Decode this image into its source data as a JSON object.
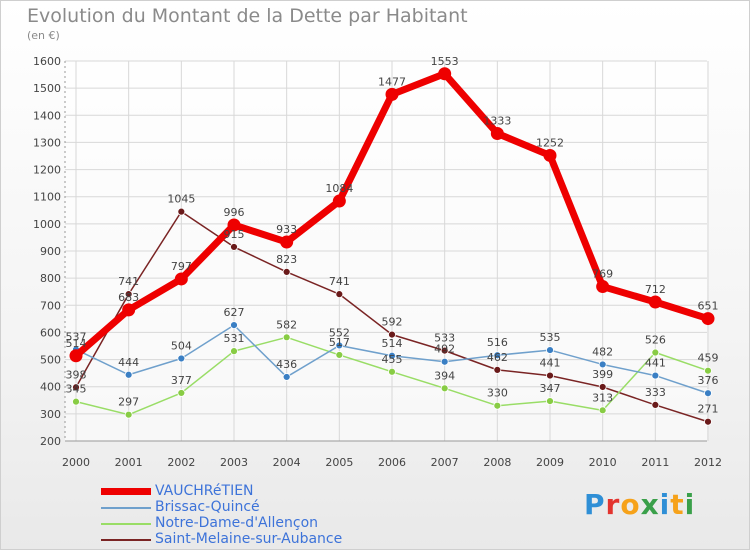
{
  "title": "Evolution du Montant de la Dette par Habitant",
  "subtitle": "(en €)",
  "brand": {
    "text": "Proxiti",
    "letters": [
      "P",
      "r",
      "o",
      "x",
      "i",
      "t",
      "i"
    ],
    "colors": [
      "#2f8fd6",
      "#e3342f",
      "#f6a21a",
      "#3aa04a",
      "#2f8fd6",
      "#f6a21a",
      "#3aa04a"
    ]
  },
  "chart_data": {
    "type": "line",
    "x": [
      "2000",
      "2001",
      "2002",
      "2003",
      "2004",
      "2005",
      "2006",
      "2007",
      "2008",
      "2009",
      "2010",
      "2011",
      "2012"
    ],
    "ylim": [
      200,
      1600
    ],
    "yticks": [
      200,
      300,
      400,
      500,
      600,
      700,
      800,
      900,
      1000,
      1100,
      1200,
      1300,
      1400,
      1500,
      1600
    ],
    "grid": true,
    "legend_position": "bottom-left",
    "series": [
      {
        "name": "VAUCHRéTIEN",
        "color": "#ee0000",
        "values": [
          514,
          683,
          797,
          996,
          933,
          1084,
          1477,
          1553,
          1333,
          1252,
          769,
          712,
          651
        ],
        "labels": [
          "514",
          "683",
          "797",
          "996",
          "933",
          "1084",
          "1477",
          "1553",
          "1333",
          "1252",
          "769",
          "712",
          "651"
        ]
      },
      {
        "name": "Brissac-Quincé",
        "color": "#6fa0cc",
        "values": [
          537,
          444,
          504,
          627,
          436,
          552,
          514,
          492,
          516,
          535,
          482,
          441,
          376
        ],
        "labels": [
          "537",
          "444",
          "504",
          "627",
          "436",
          "552",
          "514",
          "492",
          "516",
          "535",
          "482",
          "441",
          "376"
        ]
      },
      {
        "name": "Notre-Dame-d'Allençon",
        "color": "#99dd66",
        "values": [
          345,
          297,
          377,
          531,
          582,
          517,
          455,
          394,
          330,
          347,
          313,
          526,
          459
        ],
        "labels": [
          "345",
          "297",
          "377",
          "531",
          "582",
          "517",
          "455",
          "394",
          "330",
          "347",
          "313",
          "526",
          "459"
        ]
      },
      {
        "name": "Saint-Melaine-sur-Aubance",
        "color": "#7a2424",
        "values": [
          398,
          741,
          1045,
          915,
          823,
          741,
          592,
          533,
          462,
          441,
          399,
          333,
          271
        ],
        "labels": [
          "398",
          "741",
          "1045",
          "915",
          "823",
          "741",
          "592",
          "533",
          "462",
          "441",
          "399",
          "333",
          "271"
        ]
      }
    ]
  }
}
